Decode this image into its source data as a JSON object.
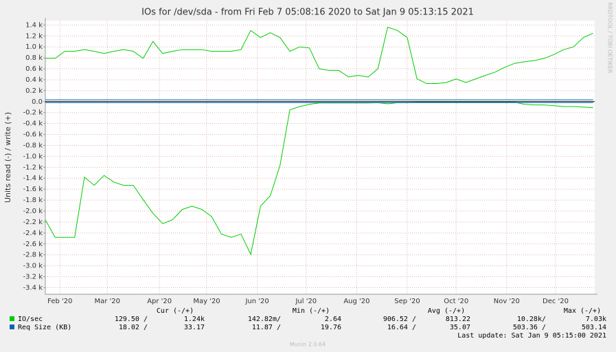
{
  "chart_data": {
    "type": "line",
    "title": "IOs for /dev/sda - from Fri Feb  7 05:08:16 2020 to Sat Jan  9 05:13:15 2021",
    "y_label": "Units read (-) / write (+)",
    "side_label": "RRDTOOL / TOBI OETIKER",
    "footer": "Last update: Sat Jan  9 05:15:00 2021",
    "version": "Munin 2.0.64",
    "stat_headers": [
      "Cur (-/+)",
      "Min (-/+)",
      "Avg (-/+)",
      "Max (-/+)"
    ],
    "grid": true,
    "xlim": [
      0,
      337
    ],
    "ylim": [
      -3520,
      1480
    ],
    "xticks": [
      {
        "value": 9,
        "label": "Feb '20"
      },
      {
        "value": 38,
        "label": "Mar '20"
      },
      {
        "value": 70,
        "label": "Apr '20"
      },
      {
        "value": 99,
        "label": "May '20"
      },
      {
        "value": 130,
        "label": "Jun '20"
      },
      {
        "value": 160,
        "label": "Jul '20"
      },
      {
        "value": 191,
        "label": "Aug '20"
      },
      {
        "value": 222,
        "label": "Sep '20"
      },
      {
        "value": 252,
        "label": "Oct '20"
      },
      {
        "value": 283,
        "label": "Nov '20"
      },
      {
        "value": 313,
        "label": "Dec '20"
      }
    ],
    "yticks": [
      {
        "value": 1400,
        "label": "1.4 k"
      },
      {
        "value": 1200,
        "label": "1.2 k"
      },
      {
        "value": 1000,
        "label": "1.0 k"
      },
      {
        "value": 800,
        "label": "0.8 k"
      },
      {
        "value": 600,
        "label": "0.6 k"
      },
      {
        "value": 400,
        "label": "0.4 k"
      },
      {
        "value": 200,
        "label": "0.2 k"
      },
      {
        "value": 0,
        "label": "0.0"
      },
      {
        "value": -200,
        "label": "-0.2 k"
      },
      {
        "value": -400,
        "label": "-0.4 k"
      },
      {
        "value": -600,
        "label": "-0.6 k"
      },
      {
        "value": -800,
        "label": "-0.8 k"
      },
      {
        "value": -1000,
        "label": "-1.0 k"
      },
      {
        "value": -1200,
        "label": "-1.2 k"
      },
      {
        "value": -1400,
        "label": "-1.4 k"
      },
      {
        "value": -1600,
        "label": "-1.6 k"
      },
      {
        "value": -1800,
        "label": "-1.8 k"
      },
      {
        "value": -2000,
        "label": "-2.0 k"
      },
      {
        "value": -2200,
        "label": "-2.2 k"
      },
      {
        "value": -2400,
        "label": "-2.4 k"
      },
      {
        "value": -2600,
        "label": "-2.6 k"
      },
      {
        "value": -2800,
        "label": "-2.8 k"
      },
      {
        "value": -3000,
        "label": "-3.0 k"
      },
      {
        "value": -3200,
        "label": "-3.2 k"
      },
      {
        "value": -3400,
        "label": "-3.4 k"
      }
    ],
    "x": [
      0,
      6,
      12,
      18,
      24,
      30,
      36,
      42,
      48,
      54,
      60,
      66,
      72,
      78,
      84,
      90,
      96,
      102,
      108,
      114,
      120,
      126,
      132,
      138,
      144,
      150,
      156,
      162,
      168,
      174,
      180,
      186,
      192,
      198,
      204,
      210,
      216,
      222,
      228,
      234,
      240,
      246,
      252,
      258,
      264,
      270,
      276,
      282,
      288,
      294,
      300,
      306,
      312,
      318,
      324,
      330,
      336
    ],
    "series": [
      {
        "name": "IO/sec",
        "color": "#00cc00",
        "values": [
          790,
          790,
          920,
          920,
          950,
          920,
          880,
          920,
          950,
          920,
          790,
          1100,
          880,
          920,
          950,
          950,
          950,
          920,
          920,
          920,
          950,
          1300,
          1170,
          1260,
          1170,
          920,
          1000,
          980,
          600,
          570,
          570,
          450,
          480,
          450,
          600,
          1360,
          1300,
          1170,
          415,
          330,
          330,
          350,
          415,
          350,
          415,
          480,
          540,
          630,
          700,
          730,
          750,
          790,
          860,
          950,
          1000,
          1170,
          1250
        ],
        "read_values": [
          -2160,
          -2480,
          -2480,
          -2480,
          -1380,
          -1530,
          -1350,
          -1470,
          -1530,
          -1530,
          -1790,
          -2040,
          -2230,
          -2160,
          -1970,
          -1910,
          -1970,
          -2100,
          -2420,
          -2480,
          -2420,
          -2790,
          -1910,
          -1720,
          -1160,
          -150,
          -90,
          -50,
          -25,
          -25,
          -25,
          -25,
          -25,
          -25,
          -20,
          -40,
          -20,
          -20,
          -10,
          -10,
          -10,
          -10,
          -10,
          -10,
          -10,
          -10,
          -10,
          -10,
          -10,
          -50,
          -60,
          -60,
          -75,
          -90,
          -90,
          -100,
          -110
        ],
        "stats": [
          "129.50 /",
          "1.24k",
          "142.82m/",
          "2.64",
          "906.52 /",
          "813.22",
          "10.28k/",
          "7.03k"
        ]
      },
      {
        "name": "Req Size (KB)",
        "color": "#0066b3",
        "values": [
          33,
          33,
          33,
          33,
          33,
          33,
          33,
          33,
          33,
          33,
          33,
          33,
          33,
          33,
          33,
          33,
          33,
          33,
          33,
          33,
          33,
          33,
          33,
          33,
          33,
          33,
          33,
          33,
          33,
          33,
          33,
          33,
          33,
          33,
          33,
          33,
          33,
          33,
          33,
          33,
          33,
          33,
          33,
          33,
          33,
          33,
          33,
          33,
          33,
          33,
          33,
          33,
          33,
          33,
          33,
          33,
          33
        ],
        "read_values": [
          -18,
          -18,
          -18,
          -18,
          -18,
          -18,
          -18,
          -18,
          -18,
          -18,
          -18,
          -18,
          -18,
          -18,
          -18,
          -18,
          -18,
          -18,
          -18,
          -18,
          -18,
          -18,
          -18,
          -18,
          -18,
          -18,
          -18,
          -18,
          -18,
          -18,
          -18,
          -18,
          -18,
          -18,
          -18,
          -18,
          -18,
          -18,
          -18,
          -18,
          -18,
          -18,
          -18,
          -18,
          -18,
          -18,
          -18,
          -18,
          -18,
          -18,
          -18,
          -18,
          -18,
          -18,
          -18,
          -18,
          -18
        ],
        "stats": [
          "18.02 /",
          "33.17",
          "11.87 /",
          "19.76",
          "16.64 /",
          "35.07",
          "503.36 /",
          "503.14"
        ]
      }
    ]
  }
}
